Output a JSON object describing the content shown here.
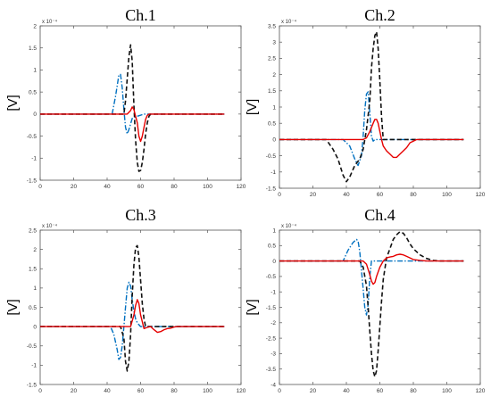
{
  "chart_data": [
    {
      "type": "line",
      "title": "Ch.1",
      "ylabel": "[V]",
      "exponent_label": "x 10⁻⁴",
      "xlim": [
        0,
        120
      ],
      "ylim": [
        -1.5,
        2
      ],
      "xticks": [
        0,
        20,
        40,
        60,
        80,
        100,
        120
      ],
      "yticks": [
        -1.5,
        -1,
        -0.5,
        0,
        0.5,
        1,
        1.5,
        2
      ],
      "xtick_labels": [
        "0",
        "20",
        "40",
        "60",
        "80",
        "100",
        "120"
      ],
      "ytick_labels": [
        "-1.5",
        "-1",
        "-0.5",
        "0",
        "0.5",
        "1",
        "1.5",
        "2"
      ],
      "series": [
        {
          "color": "#0070c0",
          "dash": "6,2,1.5,2",
          "x": [
            0,
            43,
            45,
            47,
            48,
            49,
            50,
            51,
            52,
            53,
            55,
            58,
            62,
            65,
            110
          ],
          "y": [
            0,
            0,
            0.4,
            0.88,
            0.9,
            0.6,
            0.1,
            -0.3,
            -0.45,
            -0.35,
            -0.1,
            -0.05,
            0,
            0,
            0
          ]
        },
        {
          "color": "#111111",
          "dash": "5,3",
          "x": [
            0,
            50,
            51,
            52,
            53,
            54,
            55,
            56,
            57,
            58,
            59,
            60,
            61,
            62,
            63,
            64,
            65,
            66,
            110
          ],
          "y": [
            0,
            0,
            0.3,
            0.8,
            1.3,
            1.57,
            1.2,
            0.2,
            -0.6,
            -1.1,
            -1.3,
            -1.28,
            -1.1,
            -0.8,
            -0.45,
            -0.2,
            -0.05,
            0,
            0
          ]
        },
        {
          "color": "#e60000",
          "dash": "",
          "x": [
            0,
            52,
            54,
            55,
            56,
            58,
            59,
            60,
            61,
            62,
            63,
            64,
            65,
            110
          ],
          "y": [
            0,
            0,
            0.08,
            0.16,
            0.1,
            -0.2,
            -0.5,
            -0.62,
            -0.5,
            -0.3,
            -0.12,
            -0.03,
            0,
            0
          ]
        }
      ]
    },
    {
      "type": "line",
      "title": "Ch.2",
      "ylabel": "[V]",
      "exponent_label": "x 10⁻⁴",
      "xlim": [
        0,
        120
      ],
      "ylim": [
        -1.5,
        3.5
      ],
      "xticks": [
        0,
        20,
        40,
        60,
        80,
        100,
        120
      ],
      "yticks": [
        -1.5,
        -1,
        -0.5,
        0,
        0.5,
        1,
        1.5,
        2,
        2.5,
        3,
        3.5
      ],
      "xtick_labels": [
        "0",
        "20",
        "40",
        "60",
        "80",
        "100",
        "120"
      ],
      "ytick_labels": [
        "-1.5",
        "-1",
        "-0.5",
        "0",
        "0.5",
        "1",
        "1.5",
        "2",
        "2.5",
        "3",
        "3.5"
      ],
      "series": [
        {
          "color": "#0070c0",
          "dash": "6,2,1.5,2",
          "x": [
            0,
            38,
            42,
            45,
            47,
            49,
            50,
            51,
            52,
            53,
            54,
            55,
            56,
            57,
            58,
            60,
            110
          ],
          "y": [
            0,
            0,
            -0.2,
            -0.6,
            -0.8,
            -0.5,
            0.1,
            0.9,
            1.4,
            1.47,
            0.8,
            0.1,
            -0.05,
            0,
            0,
            0,
            0
          ]
        },
        {
          "color": "#111111",
          "dash": "5,3",
          "x": [
            0,
            28,
            32,
            35,
            38,
            40,
            42,
            45,
            48,
            50,
            52,
            54,
            55,
            56,
            57,
            58,
            59,
            60,
            61,
            62,
            110
          ],
          "y": [
            0,
            0,
            -0.3,
            -0.6,
            -1.1,
            -1.3,
            -1.15,
            -0.8,
            -0.6,
            -0.3,
            0.3,
            1.2,
            2.2,
            2.8,
            3.2,
            3.32,
            2.8,
            1.8,
            0.7,
            0,
            0
          ]
        },
        {
          "color": "#e60000",
          "dash": "",
          "x": [
            0,
            50,
            52,
            54,
            56,
            57,
            58,
            59,
            60,
            61,
            62,
            64,
            66,
            68,
            70,
            72,
            74,
            76,
            78,
            80,
            82,
            110
          ],
          "y": [
            0,
            0,
            0.05,
            0.25,
            0.5,
            0.62,
            0.62,
            0.5,
            0.25,
            0,
            -0.2,
            -0.35,
            -0.45,
            -0.55,
            -0.55,
            -0.45,
            -0.35,
            -0.25,
            -0.1,
            -0.05,
            0,
            0
          ]
        }
      ]
    },
    {
      "type": "line",
      "title": "Ch.3",
      "ylabel": "[V]",
      "exponent_label": "x 10⁻⁴",
      "xlim": [
        0,
        120
      ],
      "ylim": [
        -1.5,
        2.5
      ],
      "xticks": [
        0,
        20,
        40,
        60,
        80,
        100,
        120
      ],
      "yticks": [
        -1.5,
        -1,
        -0.5,
        0,
        0.5,
        1,
        1.5,
        2,
        2.5
      ],
      "xtick_labels": [
        "0",
        "20",
        "40",
        "60",
        "80",
        "100",
        "120"
      ],
      "ytick_labels": [
        "-1.5",
        "-1",
        "-0.5",
        "0",
        "0.5",
        "1",
        "1.5",
        "2",
        "2.5"
      ],
      "series": [
        {
          "color": "#0070c0",
          "dash": "6,2,1.5,2",
          "x": [
            0,
            42,
            44,
            46,
            47,
            48,
            49,
            50,
            51,
            52,
            53,
            54,
            55,
            56,
            57,
            58,
            59,
            60,
            62,
            110
          ],
          "y": [
            0,
            0,
            -0.2,
            -0.6,
            -0.85,
            -0.8,
            -0.5,
            0,
            0.5,
            1.0,
            1.15,
            1.05,
            0.7,
            0.4,
            0.2,
            0.1,
            0.05,
            0,
            0,
            0
          ]
        },
        {
          "color": "#111111",
          "dash": "5,3",
          "x": [
            0,
            48,
            50,
            51,
            52,
            53,
            54,
            55,
            56,
            57,
            58,
            59,
            60,
            61,
            62,
            63,
            110
          ],
          "y": [
            0,
            0,
            -0.3,
            -0.9,
            -1.15,
            -0.9,
            -0.2,
            0.8,
            1.6,
            2.05,
            2.1,
            1.8,
            1.2,
            0.6,
            0.2,
            0,
            0
          ]
        },
        {
          "color": "#e60000",
          "dash": "",
          "x": [
            0,
            54,
            56,
            57,
            58,
            59,
            60,
            62,
            64,
            66,
            68,
            70,
            72,
            74,
            76,
            78,
            80,
            82,
            110
          ],
          "y": [
            0,
            0,
            0.3,
            0.55,
            0.7,
            0.6,
            0.3,
            -0.05,
            -0.02,
            0,
            -0.08,
            -0.15,
            -0.13,
            -0.08,
            -0.05,
            -0.04,
            -0.01,
            0,
            0
          ]
        }
      ]
    },
    {
      "type": "line",
      "title": "Ch.4",
      "ylabel": "[V]",
      "exponent_label": "x 10⁻⁴",
      "xlim": [
        0,
        120
      ],
      "ylim": [
        -4,
        1
      ],
      "xticks": [
        0,
        20,
        40,
        60,
        80,
        100,
        120
      ],
      "yticks": [
        -4,
        -3.5,
        -3,
        -2.5,
        -2,
        -1.5,
        -1,
        -0.5,
        0,
        0.5,
        1
      ],
      "xtick_labels": [
        "0",
        "20",
        "40",
        "60",
        "80",
        "100",
        "120"
      ],
      "ytick_labels": [
        "-4",
        "-3.5",
        "-3",
        "-2.5",
        "-2",
        "-1.5",
        "-1",
        "-0.5",
        "0",
        "0.5",
        "1"
      ],
      "series": [
        {
          "color": "#0070c0",
          "dash": "6,2,1.5,2",
          "x": [
            0,
            38,
            41,
            44,
            46,
            47,
            48,
            49,
            50,
            51,
            52,
            53,
            54,
            55,
            57,
            110
          ],
          "y": [
            0,
            0,
            0.35,
            0.6,
            0.7,
            0.65,
            0.3,
            -0.3,
            -0.9,
            -1.5,
            -1.75,
            -1.4,
            -0.5,
            0,
            0,
            0
          ]
        },
        {
          "color": "#111111",
          "dash": "5,3",
          "x": [
            0,
            48,
            50,
            52,
            53,
            54,
            55,
            56,
            57,
            58,
            59,
            60,
            61,
            62,
            64,
            66,
            68,
            70,
            72,
            74,
            76,
            78,
            80,
            84,
            88,
            92,
            96,
            110
          ],
          "y": [
            0,
            0,
            -0.2,
            -0.8,
            -1.5,
            -2.3,
            -3.0,
            -3.55,
            -3.75,
            -3.55,
            -2.9,
            -2.1,
            -1.3,
            -0.6,
            0.1,
            0.4,
            0.7,
            0.85,
            0.95,
            0.9,
            0.75,
            0.55,
            0.4,
            0.2,
            0.08,
            0.02,
            0,
            0
          ]
        },
        {
          "color": "#e60000",
          "dash": "",
          "x": [
            0,
            50,
            52,
            54,
            55,
            56,
            57,
            58,
            60,
            62,
            64,
            66,
            68,
            70,
            72,
            74,
            76,
            80,
            84,
            88,
            110
          ],
          "y": [
            0,
            0,
            -0.1,
            -0.45,
            -0.65,
            -0.75,
            -0.7,
            -0.5,
            -0.2,
            0,
            0.1,
            0.13,
            0.15,
            0.2,
            0.22,
            0.2,
            0.15,
            0.05,
            0.02,
            0,
            0
          ]
        }
      ]
    }
  ]
}
